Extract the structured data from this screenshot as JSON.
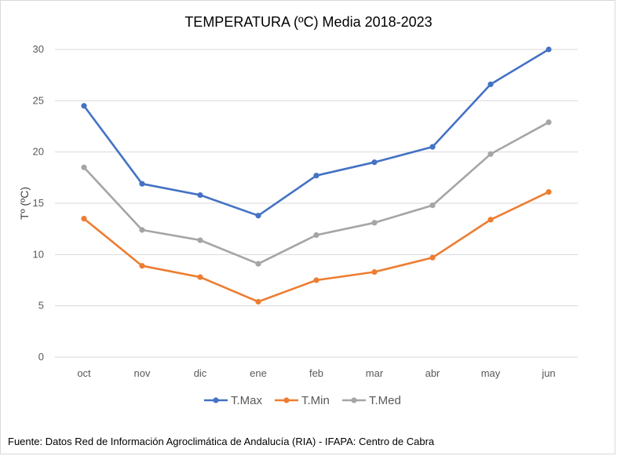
{
  "chart_data": {
    "type": "line",
    "title": "TEMPERATURA (ºC) Media 2018-2023",
    "xlabel": "",
    "ylabel": "Tº (ºC)",
    "ylim": [
      0,
      30
    ],
    "yticks": [
      0,
      5,
      10,
      15,
      20,
      25,
      30
    ],
    "categories": [
      "oct",
      "nov",
      "dic",
      "ene",
      "feb",
      "mar",
      "abr",
      "may",
      "jun"
    ],
    "grid": "horizontal",
    "legend_position": "bottom",
    "series": [
      {
        "name": "T.Max",
        "color": "#4472c4",
        "values": [
          24.5,
          16.9,
          15.8,
          13.8,
          17.7,
          19.0,
          20.5,
          26.6,
          30.0
        ]
      },
      {
        "name": "T.Min",
        "color": "#ed7d31",
        "values": [
          13.5,
          8.9,
          7.8,
          5.4,
          7.5,
          8.3,
          9.7,
          13.4,
          16.1
        ]
      },
      {
        "name": "T.Med",
        "color": "#a5a5a5",
        "values": [
          18.5,
          12.4,
          11.4,
          9.1,
          11.9,
          13.1,
          14.8,
          19.8,
          22.9
        ]
      }
    ]
  },
  "source_note": "Fuente: Datos Red de Información Agroclimática de Andalucía (RIA) - IFAPA: Centro de Cabra"
}
